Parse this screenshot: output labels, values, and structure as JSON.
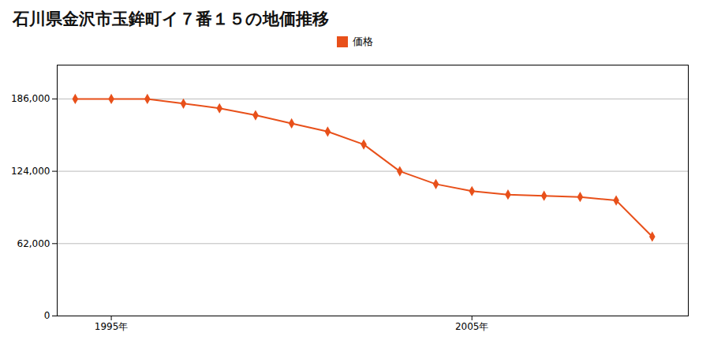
{
  "chart_data": {
    "type": "line",
    "title": "石川県金沢市玉鉾町イ７番１５の地価推移",
    "x": [
      1994,
      1995,
      1996,
      1997,
      1998,
      1999,
      2000,
      2001,
      2002,
      2003,
      2004,
      2005,
      2006,
      2007,
      2008,
      2009,
      2010
    ],
    "series": [
      {
        "name": "価格",
        "color": "#E8501A",
        "marker": "diamond",
        "values": [
          186000,
          186000,
          186000,
          182000,
          178000,
          172000,
          165000,
          158000,
          147000,
          124000,
          113000,
          107000,
          104000,
          103000,
          102000,
          99000,
          68000
        ]
      }
    ],
    "xlim": [
      1993.5,
      2011.0
    ],
    "xticks": [
      {
        "value": 1995,
        "label": "1995年"
      },
      {
        "value": 2005,
        "label": "2005年"
      }
    ],
    "ylim": [
      0,
      215000
    ],
    "yticks": [
      0,
      {
        "value": 62000,
        "label": "62,000"
      },
      {
        "value": 124000,
        "label": "124,000"
      },
      {
        "value": 186000,
        "label": "186,000"
      }
    ],
    "grid": "y",
    "legend": "top"
  }
}
